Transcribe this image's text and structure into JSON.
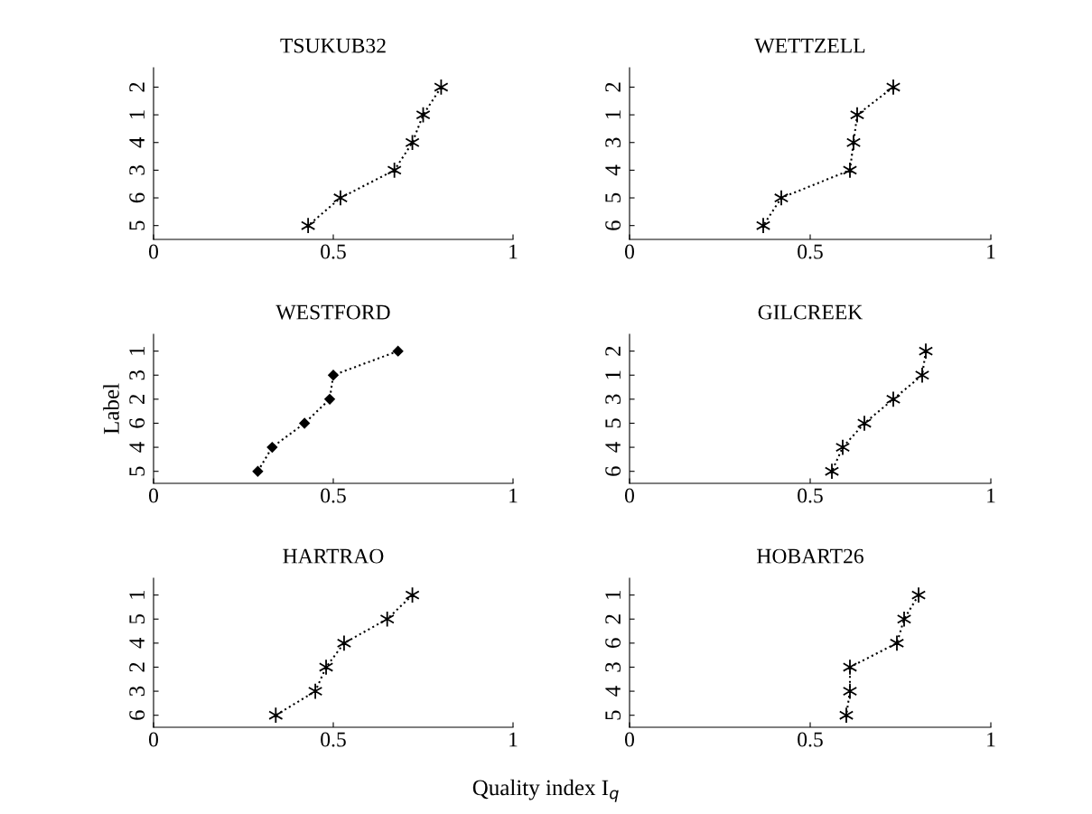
{
  "chart_data": [
    {
      "type": "line",
      "orientation": "horizontal",
      "title": "TSUKUB32",
      "categories": [
        "2",
        "1",
        "4",
        "3",
        "6",
        "5"
      ],
      "values": [
        0.8,
        0.75,
        0.72,
        0.67,
        0.52,
        0.43
      ],
      "color": "#000000",
      "marker": "cross",
      "line_style": "dotted",
      "xlim": [
        0,
        1
      ],
      "xticks": [
        0,
        0.5,
        1
      ],
      "grid": false,
      "legend": false
    },
    {
      "type": "line",
      "orientation": "horizontal",
      "title": "WETTZELL",
      "categories": [
        "2",
        "1",
        "3",
        "4",
        "5",
        "6"
      ],
      "values": [
        0.73,
        0.63,
        0.62,
        0.61,
        0.42,
        0.37
      ],
      "color": "#000000",
      "marker": "cross",
      "line_style": "dotted",
      "xlim": [
        0,
        1
      ],
      "xticks": [
        0,
        0.5,
        1
      ],
      "grid": false,
      "legend": false
    },
    {
      "type": "line",
      "orientation": "horizontal",
      "title": "WESTFORD",
      "ylabel": "Label",
      "categories": [
        "1",
        "3",
        "2",
        "6",
        "4",
        "5"
      ],
      "values": [
        0.68,
        0.5,
        0.49,
        0.42,
        0.33,
        0.29
      ],
      "color": "#000000",
      "marker": "diamond",
      "line_style": "dotted",
      "xlim": [
        0,
        1
      ],
      "xticks": [
        0,
        0.5,
        1
      ],
      "grid": false,
      "legend": false
    },
    {
      "type": "line",
      "orientation": "horizontal",
      "title": "GILCREEK",
      "categories": [
        "2",
        "1",
        "3",
        "5",
        "4",
        "6"
      ],
      "values": [
        0.82,
        0.81,
        0.73,
        0.65,
        0.59,
        0.56
      ],
      "color": "#000000",
      "marker": "cross",
      "line_style": "dotted",
      "xlim": [
        0,
        1
      ],
      "xticks": [
        0,
        0.5,
        1
      ],
      "grid": false,
      "legend": false
    },
    {
      "type": "line",
      "orientation": "horizontal",
      "title": "HARTRAO",
      "xlabel": "Quality index I$_{q}$",
      "categories": [
        "1",
        "5",
        "4",
        "2",
        "3",
        "6"
      ],
      "values": [
        0.72,
        0.65,
        0.53,
        0.48,
        0.45,
        0.34
      ],
      "color": "#000000",
      "marker": "cross",
      "line_style": "dotted",
      "xlim": [
        0,
        1
      ],
      "xticks": [
        0,
        0.5,
        1
      ],
      "grid": false,
      "legend": false
    },
    {
      "type": "line",
      "orientation": "horizontal",
      "title": "HOBART26",
      "categories": [
        "1",
        "2",
        "6",
        "3",
        "4",
        "5"
      ],
      "values": [
        0.8,
        0.76,
        0.74,
        0.61,
        0.61,
        0.6
      ],
      "color": "#000000",
      "marker": "cross",
      "line_style": "dotted",
      "xlim": [
        0,
        1
      ],
      "xticks": [
        0,
        0.5,
        1
      ],
      "grid": false,
      "legend": false
    }
  ]
}
